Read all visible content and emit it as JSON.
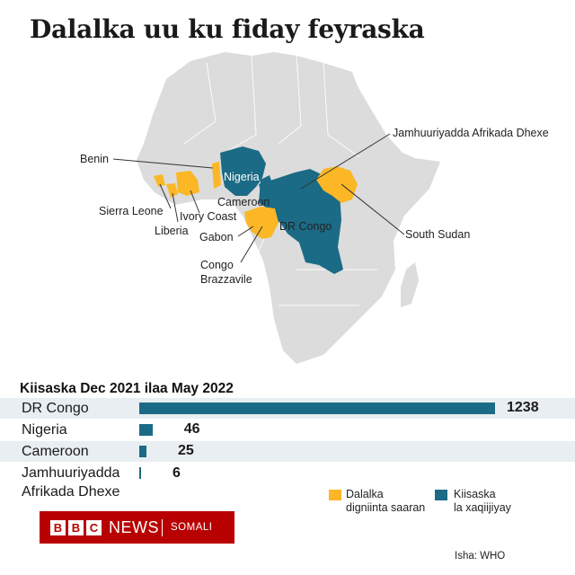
{
  "title": "Dalalka uu ku fiday feyraska",
  "map": {
    "labels": {
      "benin": "Benin",
      "nigeria": "Nigeria",
      "sierra_leone": "Sierra Leone",
      "ivory_coast": "Ivory Coast",
      "liberia": "Liberia",
      "cameroon": "Cameroon",
      "gabon": "Gabon",
      "dr_congo": "DR Congo",
      "congo_brazzaville_1": "Congo",
      "congo_brazzaville_2": "Brazzavile",
      "car": "Jamhuuriyadda Afrikada Dhexe",
      "south_sudan": "South Sudan"
    },
    "colors": {
      "land": "#dcdcdc",
      "suspected": "#fbb725",
      "confirmed": "#1b6b86"
    }
  },
  "chart_data": {
    "type": "bar",
    "title": "Kiisaska Dec 2021 ilaa May 2022",
    "categories": [
      "DR Congo",
      "Nigeria",
      "Cameroon",
      "Jamhuuriyadda Afrikada Dhexe"
    ],
    "category_lines": [
      [
        "DR Congo"
      ],
      [
        "Nigeria"
      ],
      [
        "Cameroon"
      ],
      [
        "Jamhuuriyadda",
        "Afrikada Dhexe"
      ]
    ],
    "values": [
      1238,
      46,
      25,
      6
    ],
    "value_labels": [
      "1238",
      "46",
      "25",
      "6"
    ],
    "xlim": [
      0,
      1238
    ],
    "orientation": "horizontal",
    "bar_color": "#1b6b86"
  },
  "legend": {
    "suspected": [
      "Dalalka",
      "digniinta saaran"
    ],
    "confirmed": [
      "Kiisaska",
      "la xaqiijiyay"
    ]
  },
  "source": "Isha: WHO",
  "logo": {
    "b1": "B",
    "b2": "B",
    "c": "C",
    "news": "NEWS",
    "service": "SOMALI"
  }
}
